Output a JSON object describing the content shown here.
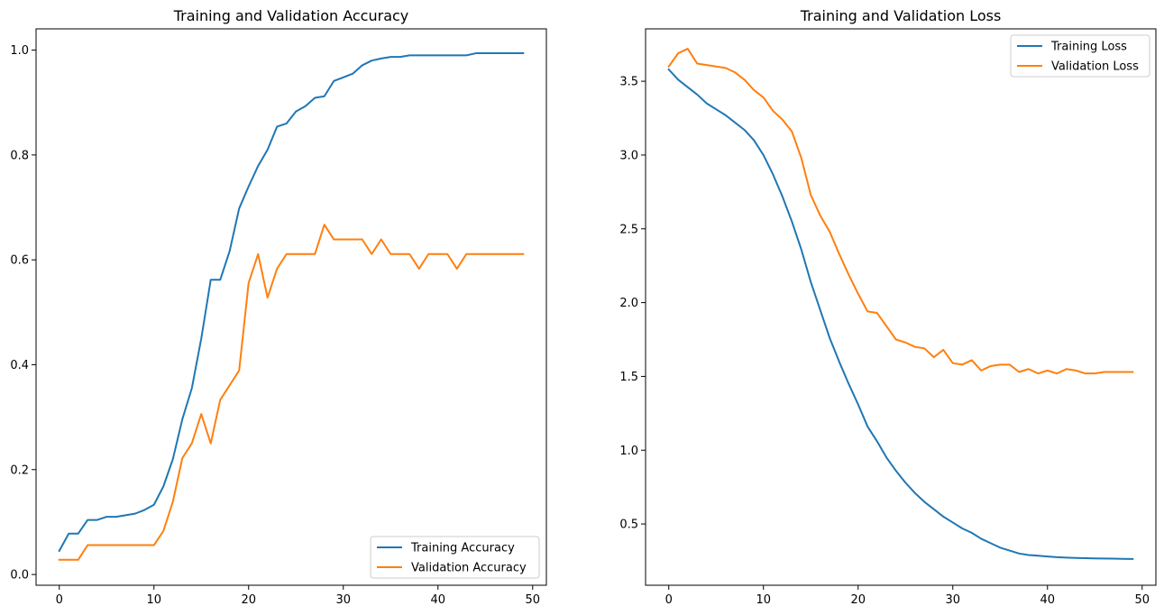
{
  "chart_data": [
    {
      "type": "line",
      "title": "Training and Validation Accuracy",
      "xlabel": "",
      "ylabel": "",
      "xlim": [
        -2.45,
        51.45
      ],
      "ylim": [
        -0.0205,
        1.0405
      ],
      "xticks": [
        0,
        10,
        20,
        30,
        40,
        50
      ],
      "yticks": [
        0.0,
        0.2,
        0.4,
        0.6,
        0.8,
        1.0
      ],
      "xtick_labels": [
        "0",
        "10",
        "20",
        "30",
        "40",
        "50"
      ],
      "ytick_labels": [
        "0.0",
        "0.2",
        "0.4",
        "0.6",
        "0.8",
        "1.0"
      ],
      "grid": false,
      "legend_position": "lower right",
      "x": [
        0,
        1,
        2,
        3,
        4,
        5,
        6,
        7,
        8,
        9,
        10,
        11,
        12,
        13,
        14,
        15,
        16,
        17,
        18,
        19,
        20,
        21,
        22,
        23,
        24,
        25,
        26,
        27,
        28,
        29,
        30,
        31,
        32,
        33,
        34,
        35,
        36,
        37,
        38,
        39,
        40,
        41,
        42,
        43,
        44,
        45,
        46,
        47,
        48,
        49
      ],
      "series": [
        {
          "name": "Training Accuracy",
          "color": "#1f77b4",
          "values": [
            0.045,
            0.078,
            0.078,
            0.104,
            0.104,
            0.11,
            0.11,
            0.113,
            0.116,
            0.123,
            0.133,
            0.168,
            0.22,
            0.296,
            0.355,
            0.45,
            0.562,
            0.562,
            0.617,
            0.698,
            0.74,
            0.779,
            0.81,
            0.854,
            0.86,
            0.883,
            0.893,
            0.909,
            0.912,
            0.941,
            0.948,
            0.955,
            0.971,
            0.98,
            0.984,
            0.987,
            0.987,
            0.99,
            0.99,
            0.99,
            0.99,
            0.99,
            0.99,
            0.99,
            0.994,
            0.994,
            0.994,
            0.994,
            0.994,
            0.994
          ]
        },
        {
          "name": "Validation Accuracy",
          "color": "#ff7f0e",
          "values": [
            0.028,
            0.028,
            0.028,
            0.056,
            0.056,
            0.056,
            0.056,
            0.056,
            0.056,
            0.056,
            0.056,
            0.083,
            0.139,
            0.222,
            0.25,
            0.306,
            0.25,
            0.333,
            0.361,
            0.389,
            0.556,
            0.611,
            0.528,
            0.583,
            0.611,
            0.611,
            0.611,
            0.611,
            0.667,
            0.639,
            0.639,
            0.639,
            0.639,
            0.611,
            0.639,
            0.611,
            0.611,
            0.611,
            0.583,
            0.611,
            0.611,
            0.611,
            0.583,
            0.611,
            0.611,
            0.611,
            0.611,
            0.611,
            0.611,
            0.611
          ]
        }
      ]
    },
    {
      "type": "line",
      "title": "Training and Validation Loss",
      "xlabel": "",
      "ylabel": "",
      "xlim": [
        -2.45,
        51.45
      ],
      "ylim": [
        0.085,
        3.855
      ],
      "xticks": [
        0,
        10,
        20,
        30,
        40,
        50
      ],
      "yticks": [
        0.5,
        1.0,
        1.5,
        2.0,
        2.5,
        3.0,
        3.5
      ],
      "xtick_labels": [
        "0",
        "10",
        "20",
        "30",
        "40",
        "50"
      ],
      "ytick_labels": [
        "0.5",
        "1.0",
        "1.5",
        "2.0",
        "2.5",
        "3.0",
        "3.5"
      ],
      "grid": false,
      "legend_position": "upper right",
      "x": [
        0,
        1,
        2,
        3,
        4,
        5,
        6,
        7,
        8,
        9,
        10,
        11,
        12,
        13,
        14,
        15,
        16,
        17,
        18,
        19,
        20,
        21,
        22,
        23,
        24,
        25,
        26,
        27,
        28,
        29,
        30,
        31,
        32,
        33,
        34,
        35,
        36,
        37,
        38,
        39,
        40,
        41,
        42,
        43,
        44,
        45,
        46,
        47,
        48,
        49
      ],
      "series": [
        {
          "name": "Training Loss",
          "color": "#1f77b4",
          "values": [
            3.58,
            3.51,
            3.46,
            3.41,
            3.35,
            3.31,
            3.27,
            3.22,
            3.17,
            3.1,
            3.0,
            2.87,
            2.72,
            2.55,
            2.36,
            2.14,
            1.95,
            1.76,
            1.6,
            1.45,
            1.31,
            1.16,
            1.06,
            0.95,
            0.86,
            0.78,
            0.71,
            0.65,
            0.6,
            0.55,
            0.51,
            0.47,
            0.44,
            0.4,
            0.37,
            0.34,
            0.32,
            0.3,
            0.29,
            0.285,
            0.28,
            0.275,
            0.272,
            0.27,
            0.268,
            0.267,
            0.266,
            0.265,
            0.264,
            0.263
          ]
        },
        {
          "name": "Validation Loss",
          "color": "#ff7f0e",
          "values": [
            3.6,
            3.69,
            3.72,
            3.62,
            3.61,
            3.6,
            3.59,
            3.56,
            3.51,
            3.44,
            3.39,
            3.3,
            3.24,
            3.16,
            2.98,
            2.73,
            2.59,
            2.48,
            2.33,
            2.19,
            2.06,
            1.94,
            1.93,
            1.84,
            1.75,
            1.73,
            1.7,
            1.69,
            1.63,
            1.68,
            1.59,
            1.58,
            1.61,
            1.54,
            1.57,
            1.58,
            1.58,
            1.53,
            1.55,
            1.52,
            1.54,
            1.52,
            1.55,
            1.54,
            1.52,
            1.52,
            1.53,
            1.53,
            1.53,
            1.53
          ]
        }
      ]
    }
  ]
}
